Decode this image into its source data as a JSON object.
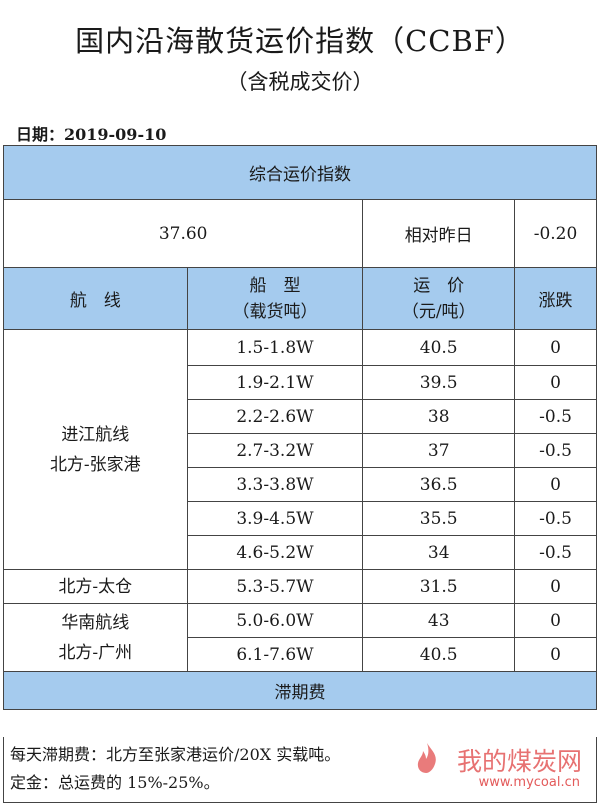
{
  "title": "国内沿海散货运价指数（CCBF）",
  "subtitle": "（含税成交价）",
  "date": "日期：2019-09-10",
  "summary": {
    "header": "综合运价指数",
    "index_value": "37.60",
    "compare_label": "相对昨日",
    "change": "-0.20"
  },
  "columns": {
    "route": "航　线",
    "ship_type_line1": "船　型",
    "ship_type_line2": "（载货吨）",
    "freight_line1": "运　价",
    "freight_line2": "（元/吨）",
    "change": "涨跌"
  },
  "groups": [
    {
      "route_line1": "进江航线",
      "route_line2": "北方-张家港",
      "rows": [
        {
          "ship": "1.5-1.8W",
          "price": "40.5",
          "change": "0"
        },
        {
          "ship": "1.9-2.1W",
          "price": "39.5",
          "change": "0"
        },
        {
          "ship": "2.2-2.6W",
          "price": "38",
          "change": "-0.5"
        },
        {
          "ship": "2.7-3.2W",
          "price": "37",
          "change": "-0.5"
        },
        {
          "ship": "3.3-3.8W",
          "price": "36.5",
          "change": "0"
        },
        {
          "ship": "3.9-4.5W",
          "price": "35.5",
          "change": "-0.5"
        },
        {
          "ship": "4.6-5.2W",
          "price": "34",
          "change": "-0.5"
        }
      ]
    },
    {
      "route_line1": "北方-太仓",
      "route_line2": "",
      "rows": [
        {
          "ship": "5.3-5.7W",
          "price": "31.5",
          "change": "0"
        }
      ]
    },
    {
      "route_line1": "华南航线",
      "route_line2": "北方-广州",
      "rows": [
        {
          "ship": "5.0-6.0W",
          "price": "43",
          "change": "0"
        },
        {
          "ship": "6.1-7.6W",
          "price": "40.5",
          "change": "0"
        }
      ]
    }
  ],
  "demurrage": {
    "header": "滞期费",
    "line1": "每天滞期费：北方至张家港运价/20X 实载吨。",
    "line2": "定金：总运费的 15%-25%。"
  },
  "watermark": {
    "text": "我的煤炭网",
    "url": "www.mycoal.cn",
    "color": "#e35a5a",
    "icon": "flame-logo-icon"
  },
  "colors": {
    "header_fill": "#a5cbee",
    "border": "#444444"
  }
}
